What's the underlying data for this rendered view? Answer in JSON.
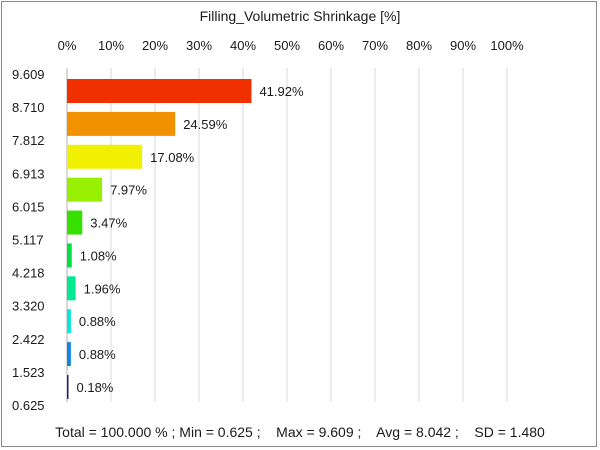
{
  "chart_data": {
    "type": "bar",
    "orientation": "horizontal",
    "title": "Filling_Volumetric Shrinkage [%]",
    "x_ticks": [
      "0%",
      "10%",
      "20%",
      "30%",
      "40%",
      "50%",
      "60%",
      "70%",
      "80%",
      "90%",
      "100%"
    ],
    "xlim": [
      0,
      100
    ],
    "y_ticks": [
      "9.609",
      "8.710",
      "7.812",
      "6.913",
      "6.015",
      "5.117",
      "4.218",
      "3.320",
      "2.422",
      "1.523",
      "0.625"
    ],
    "grid": "vertical",
    "bars": [
      {
        "value": 41.92,
        "label": "41.92%",
        "color": "#f03000"
      },
      {
        "value": 24.59,
        "label": "24.59%",
        "color": "#f29200"
      },
      {
        "value": 17.08,
        "label": "17.08%",
        "color": "#f0f000"
      },
      {
        "value": 7.97,
        "label": "7.97%",
        "color": "#96f000"
      },
      {
        "value": 3.47,
        "label": "3.47%",
        "color": "#38e000"
      },
      {
        "value": 1.08,
        "label": "1.08%",
        "color": "#00e040"
      },
      {
        "value": 1.96,
        "label": "1.96%",
        "color": "#00e890"
      },
      {
        "value": 0.88,
        "label": "0.88%",
        "color": "#00e8e0"
      },
      {
        "value": 0.88,
        "label": "0.88%",
        "color": "#1088e0"
      },
      {
        "value": 0.18,
        "label": "0.18%",
        "color": "#1c1c90"
      }
    ]
  },
  "stats": "Total = 100.000 % ; Min = 0.625 ;    Max = 9.609 ;    Avg = 8.042 ;    SD = 1.480"
}
